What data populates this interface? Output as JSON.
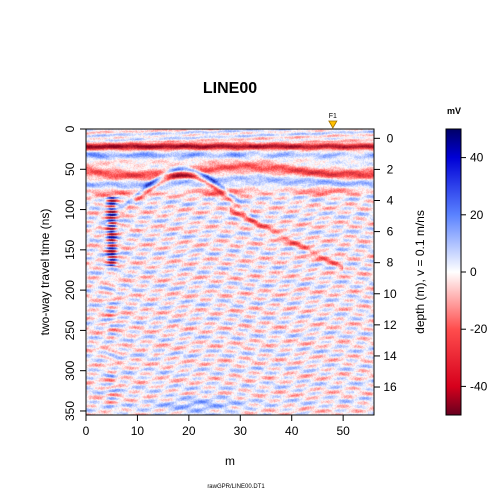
{
  "chart_data": {
    "type": "heatmap",
    "title": "LINE00",
    "xlabel": "m",
    "ylabel": "two-way travel time (ns)",
    "ylabel_right": "depth (m),  v = 0.1 m/ns",
    "footer": "rawGPR/LINE00.DT1",
    "x_range": [
      0,
      56
    ],
    "y_range": [
      0,
      355
    ],
    "depth_range": [
      -0.6,
      17.8
    ],
    "x_ticks": [
      0,
      10,
      20,
      30,
      40,
      50
    ],
    "y_ticks": [
      0,
      50,
      100,
      150,
      200,
      250,
      300,
      350
    ],
    "depth_ticks": [
      0,
      2,
      4,
      6,
      8,
      10,
      12,
      14,
      16
    ],
    "marker": {
      "label": "F1",
      "x": 48,
      "color": "#ffc000"
    },
    "colorbar": {
      "unit": "mV",
      "range": [
        -50,
        50
      ],
      "ticks": [
        -40,
        -20,
        0,
        20,
        40
      ]
    },
    "features": [
      {
        "name": "direct wave",
        "t_ns": 22,
        "x": [
          0,
          56
        ],
        "amplitude": -45
      },
      {
        "name": "ground wave",
        "t_ns": 35,
        "x": [
          0,
          56
        ],
        "amplitude": 25
      },
      {
        "name": "shallow reflector",
        "t_ns": [
          45,
          70
        ],
        "x": [
          0,
          56
        ],
        "amplitude": -30
      },
      {
        "name": "hyperbola",
        "apex_x": 19,
        "apex_t_ns": 50,
        "amplitude": 45
      },
      {
        "name": "strong anomaly",
        "x": 5,
        "t_ns": [
          90,
          160
        ],
        "amplitude": 50
      },
      {
        "name": "dipping reflector",
        "x": [
          30,
          48
        ],
        "t_ns": [
          100,
          170
        ],
        "amplitude": -20
      }
    ]
  }
}
